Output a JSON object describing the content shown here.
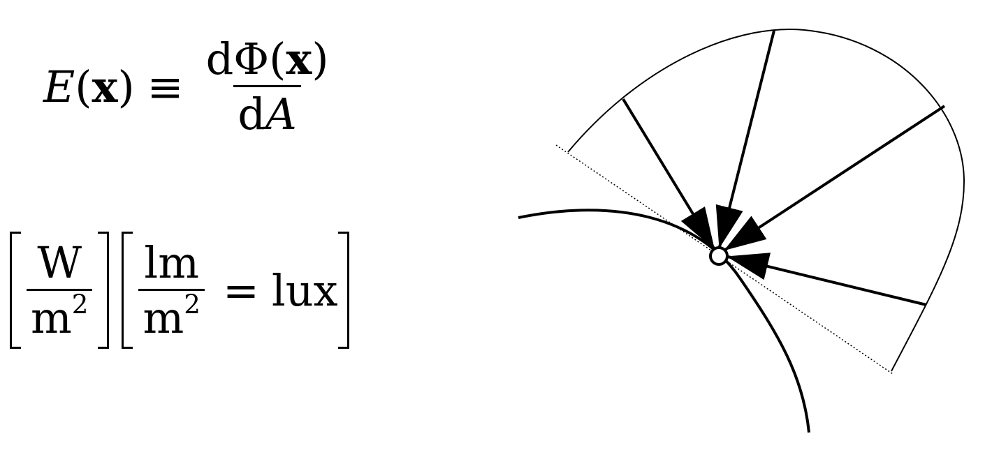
{
  "equation": {
    "lhs_symbol": "E",
    "lhs_arg": "x",
    "equiv": "≡",
    "num_d": "d",
    "num_phi": "Φ",
    "num_arg": "x",
    "den": "d",
    "den_var": "A"
  },
  "units": {
    "radiometric": {
      "num": "W",
      "den_base": "m",
      "den_exp": "2"
    },
    "photometric": {
      "num": "lm",
      "den_base": "m",
      "den_exp": "2",
      "eq": "=",
      "named": "lux"
    }
  },
  "colors": {
    "ink": "#000000",
    "paper": "#ffffff"
  }
}
